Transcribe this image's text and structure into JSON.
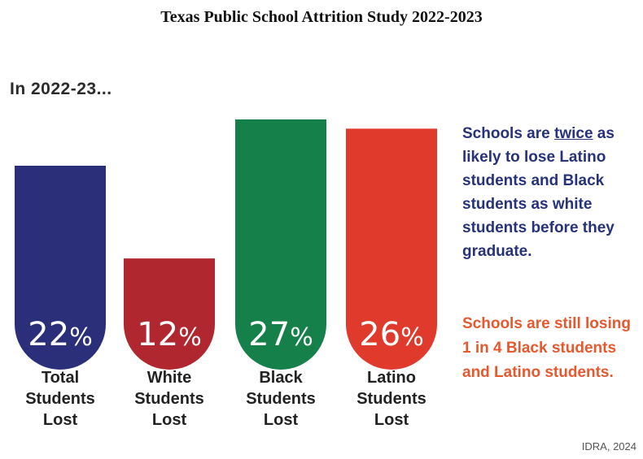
{
  "title": "Texas Public School Attrition Study 2022-2023",
  "subtitle": "In 2022-23...",
  "chart_data": {
    "type": "bar",
    "unit": "%",
    "categories": [
      "Total Students Lost",
      "White Students Lost",
      "Black Students Lost",
      "Latino Students Lost"
    ],
    "values": [
      22,
      12,
      27,
      26
    ],
    "colors": [
      "#2b2f7a",
      "#b0272f",
      "#15804a",
      "#e03a2c"
    ],
    "ylim": [
      0,
      27
    ]
  },
  "callout1": {
    "part1": "Schools are ",
    "emphasis": "twice",
    "part2": " as likely to lose Latino students and Black students as white students before they graduate."
  },
  "callout2": "Schools are still losing 1 in 4 Black students and Latino students.",
  "credit": "IDRA, 2024"
}
